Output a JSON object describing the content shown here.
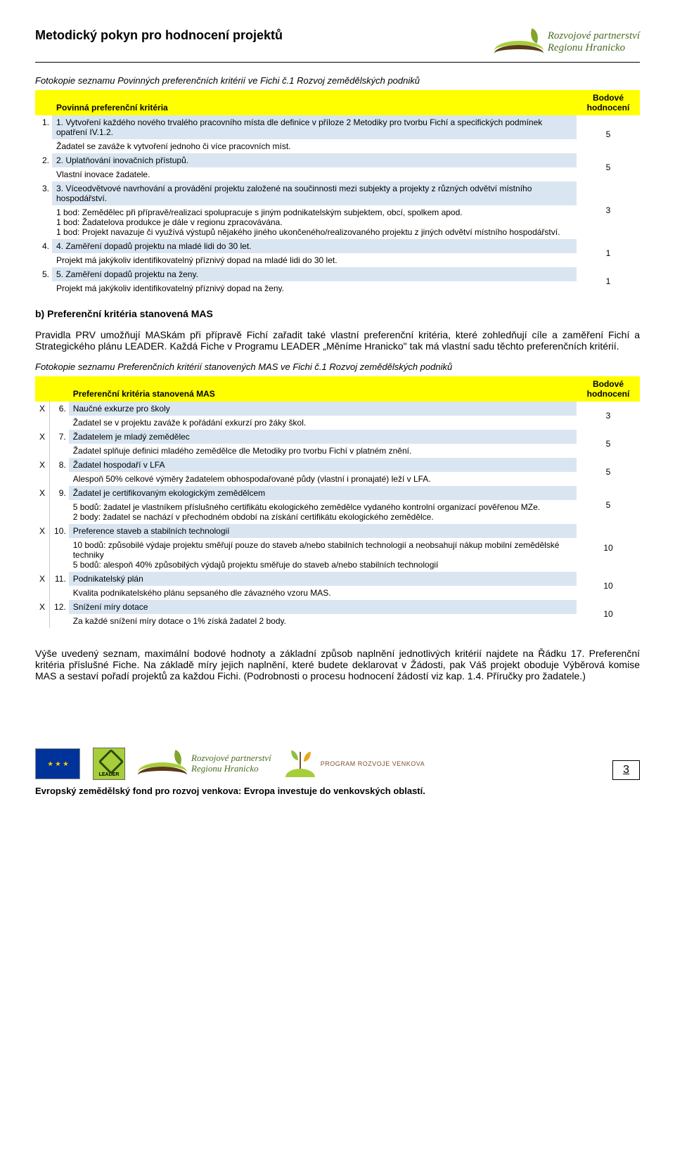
{
  "header": {
    "title": "Metodický pokyn pro hodnocení projektů",
    "logo_line1": "Rozvojové partnerství",
    "logo_line2": "Regionu Hranicko"
  },
  "caption1": "Fotokopie seznamu Povinných preferenčních kritérií ve Fichi č.1 Rozvoj zemědělských podniků",
  "table1": {
    "head_criteria": "Povinná preferenční kritéria",
    "head_score": "Bodové hodnocení",
    "rows": [
      {
        "num": "1.",
        "title": "1. Vytvoření každého nového trvalého pracovního místa dle definice v příloze 2 Metodiky pro tvorbu Fichí a specifických podmínek opatření IV.1.2.",
        "desc": "Žadatel se zaváže k vytvoření jednoho či více pracovních míst.",
        "score": "5"
      },
      {
        "num": "2.",
        "title": "2. Uplatňování inovačních přístupů.",
        "desc": "Vlastní inovace žadatele.",
        "score": "5"
      },
      {
        "num": "3.",
        "title": "3. Víceodvětvové navrhování a provádění projektu založené na součinnosti mezi subjekty a projekty z různých odvětví místního hospodářství.",
        "desc": "1 bod: Zemědělec při přípravě/realizaci spolupracuje s jiným podnikatelským subjektem, obcí, spolkem apod.\n1 bod: Žadatelova produkce je dále v regionu zpracovávána.\n1 bod: Projekt navazuje či využívá výstupů nějakého jiného ukončeného/realizovaného projektu z jiných odvětví místního hospodářství.",
        "score": "3"
      },
      {
        "num": "4.",
        "title": "4. Zaměření dopadů projektu na mladé lidi do 30 let.",
        "desc": "Projekt má jakýkoliv identifikovatelný příznivý dopad na mladé lidi do 30 let.",
        "score": "1"
      },
      {
        "num": "5.",
        "title": "5. Zaměření dopadů projektu na ženy.",
        "desc": "Projekt má jakýkoliv identifikovatelný příznivý dopad na ženy.",
        "score": "1"
      }
    ]
  },
  "section_b": {
    "heading": "b)  Preferenční kritéria stanovená MAS",
    "para": "Pravidla PRV umožňují MASkám při přípravě Fichí zařadit také vlastní preferenční kritéria, které zohledňují cíle a zaměření Fichí a Strategického plánu LEADER. Každá Fiche v Programu LEADER „Měníme Hranicko\" tak má vlastní sadu těchto preferenčních kritérií."
  },
  "caption2": "Fotokopie seznamu Preferenčních kritérií stanovených MAS ve Fichi č.1 Rozvoj zemědělských podniků",
  "table2": {
    "head_criteria": "Preferenční kritéria stanovená MAS",
    "head_score": "Bodové hodnocení",
    "rows": [
      {
        "x": "X",
        "num": "6.",
        "title": "Naučné exkurze pro školy",
        "desc": "Žadatel se v projektu zaváže k pořádání exkurzí pro žáky škol.",
        "score": "3"
      },
      {
        "x": "X",
        "num": "7.",
        "title": "Žadatelem je mladý zemědělec",
        "desc": "Žadatel splňuje definici mladého zemědělce dle Metodiky pro tvorbu Fichí v platném znění.",
        "score": "5"
      },
      {
        "x": "X",
        "num": "8.",
        "title": "Žadatel hospodaří v LFA",
        "desc": "Alespoň 50% celkové výměry žadatelem obhospodařované půdy (vlastní i pronajaté) leží v LFA.",
        "score": "5"
      },
      {
        "x": "X",
        "num": "9.",
        "title": "Žadatel je certifikovaným ekologickým zemědělcem",
        "desc": "5 bodů: žadatel je vlastníkem příslušného certifikátu ekologického zemědělce vydaného kontrolní organizací pověřenou MZe.\n2 body: žadatel se nachází v přechodném období na získání certifikátu ekologického zemědělce.",
        "score": "5"
      },
      {
        "x": "X",
        "num": "10.",
        "title": "Preference staveb a stabilních technologií",
        "desc": "10 bodů: způsobilé výdaje projektu směřují pouze do staveb a/nebo stabilních technologií a neobsahují nákup mobilní zemědělské techniky\n5 bodů: alespoň 40% způsobilých výdajů projektu směřuje do staveb a/nebo stabilních technologií",
        "score": "10"
      },
      {
        "x": "X",
        "num": "11.",
        "title": "Podnikatelský plán",
        "desc": "Kvalita podnikatelského plánu sepsaného dle závazného vzoru MAS.",
        "score": "10"
      },
      {
        "x": "X",
        "num": "12.",
        "title": "Snížení míry dotace",
        "desc": "Za každé snížení míry dotace o 1% získá žadatel 2 body.",
        "score": "10"
      }
    ]
  },
  "closing": "Výše uvedený seznam, maximální bodové hodnoty a základní způsob naplnění jednotlivých kritérií najdete na Řádku 17. Preferenční kritéria příslušné Fiche. Na základě míry jejich naplnění, které budete deklarovat v Žádosti, pak Váš projekt oboduje Výběrová komise MAS a sestaví pořadí projektů za každou Fichi. (Podrobnosti o procesu hodnocení žádostí viz kap. 1.4. Příručky pro žadatele.)",
  "footer": {
    "leader_text": "LEADER",
    "prog_text": "PROGRAM ROZVOJE VENKOVA",
    "page_num": "3",
    "line": "Evropský zemědělský fond pro rozvoj venkova: Evropa investuje do venkovských oblastí."
  },
  "colors": {
    "yellow": "#ffff00",
    "lightblue": "#d9e6f2",
    "green": "#a6ce39",
    "darkolive": "#4a6b1f",
    "eu_blue": "#003399",
    "eu_gold": "#ffcc00"
  }
}
